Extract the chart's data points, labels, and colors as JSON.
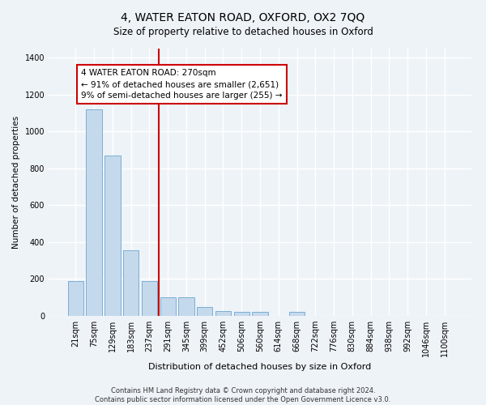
{
  "title": "4, WATER EATON ROAD, OXFORD, OX2 7QQ",
  "subtitle": "Size of property relative to detached houses in Oxford",
  "xlabel": "Distribution of detached houses by size in Oxford",
  "ylabel": "Number of detached properties",
  "categories": [
    "21sqm",
    "75sqm",
    "129sqm",
    "183sqm",
    "237sqm",
    "291sqm",
    "345sqm",
    "399sqm",
    "452sqm",
    "506sqm",
    "560sqm",
    "614sqm",
    "668sqm",
    "722sqm",
    "776sqm",
    "830sqm",
    "884sqm",
    "938sqm",
    "992sqm",
    "1046sqm",
    "1100sqm"
  ],
  "values": [
    190,
    1120,
    870,
    355,
    190,
    100,
    100,
    50,
    25,
    20,
    20,
    0,
    20,
    0,
    0,
    0,
    0,
    0,
    0,
    0,
    0
  ],
  "bar_color": "#c5d9ec",
  "bar_edge_color": "#7aafd4",
  "vline_color": "#cc0000",
  "annotation_text": "4 WATER EATON ROAD: 270sqm\n← 91% of detached houses are smaller (2,651)\n9% of semi-detached houses are larger (255) →",
  "annotation_box_color": "white",
  "annotation_box_edge_color": "#cc0000",
  "ylim": [
    0,
    1450
  ],
  "yticks": [
    0,
    200,
    400,
    600,
    800,
    1000,
    1200,
    1400
  ],
  "footer": "Contains HM Land Registry data © Crown copyright and database right 2024.\nContains public sector information licensed under the Open Government Licence v3.0.",
  "bg_color": "#eef3f8",
  "plot_bg_color": "#eef3f8",
  "grid_color": "#ffffff",
  "title_fontsize": 10,
  "subtitle_fontsize": 8.5,
  "ylabel_fontsize": 7.5,
  "xlabel_fontsize": 8,
  "annotation_fontsize": 7.5,
  "tick_fontsize": 7,
  "footer_fontsize": 6
}
